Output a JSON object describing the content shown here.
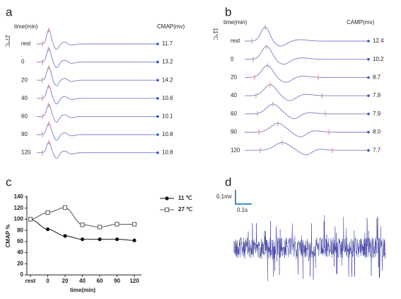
{
  "panel_a": {
    "label": "a",
    "time_label": "time(min)",
    "temperature": "27℃",
    "value_header": "CMAP(mv)",
    "rows": [
      {
        "time": "rest",
        "value": "11.7"
      },
      {
        "time": "0",
        "value": "13.2"
      },
      {
        "time": "20",
        "value": "14.2"
      },
      {
        "time": "40",
        "value": "10.6"
      },
      {
        "time": "60",
        "value": "10.1"
      },
      {
        "time": "90",
        "value": "10.8"
      },
      {
        "time": "120",
        "value": "10.8"
      }
    ]
  },
  "panel_b": {
    "label": "b",
    "time_label": "time(min)",
    "temperature": "11℃",
    "value_header": "CAMP(mv)",
    "rows": [
      {
        "time": "rest",
        "value": "12.4"
      },
      {
        "time": "0",
        "value": "10.2"
      },
      {
        "time": "20",
        "value": "8.7"
      },
      {
        "time": "40",
        "value": "7.9"
      },
      {
        "time": "60",
        "value": "7.9"
      },
      {
        "time": "90",
        "value": "8.0"
      },
      {
        "time": "120",
        "value": "7.7"
      }
    ]
  },
  "chart_data": {
    "type": "line",
    "label": "c",
    "xlabel": "time(min)",
    "ylabel": "CMAP %",
    "categories": [
      "rest",
      "0",
      "20",
      "40",
      "60",
      "90",
      "120"
    ],
    "series": [
      {
        "name": "11 ℃",
        "color": "#111111",
        "marker": "circle-filled",
        "values": [
          100,
          82,
          70,
          64,
          64,
          64,
          62
        ]
      },
      {
        "name": "27 ℃",
        "color": "#555555",
        "marker": "square-open",
        "values": [
          100,
          112,
          121,
          90,
          86,
          91,
          91
        ]
      }
    ],
    "ylim": [
      0,
      140
    ],
    "yticks": [
      0,
      20,
      40,
      60,
      80,
      100,
      120,
      140
    ]
  },
  "panel_d": {
    "label": "d",
    "scale_voltage": "0.1mv",
    "scale_time": "0.1s"
  }
}
